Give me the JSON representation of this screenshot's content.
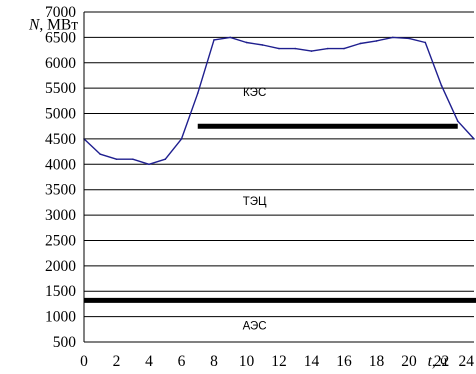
{
  "chart_data": {
    "type": "line",
    "title": "",
    "ylabel": {
      "var": "N",
      "unit": ", МВт"
    },
    "xlabel": {
      "var": "t",
      "unit": ", ч"
    },
    "ylim": [
      500,
      7000
    ],
    "xlim": [
      0,
      24
    ],
    "y_ticks": [
      500,
      1000,
      1500,
      2000,
      2500,
      3000,
      3500,
      4000,
      4500,
      5000,
      5500,
      6000,
      6500,
      7000
    ],
    "x_ticks": [
      0,
      2,
      4,
      6,
      8,
      10,
      12,
      14,
      16,
      18,
      20,
      22,
      24
    ],
    "grid": {
      "horizontal": true,
      "vertical": false
    },
    "series": [
      {
        "color": "#1f1f8f",
        "x": [
          0,
          1,
          2,
          3,
          4,
          5,
          6,
          7,
          8,
          9,
          10,
          11,
          12,
          13,
          14,
          15,
          16,
          17,
          18,
          19,
          20,
          21,
          22,
          23,
          24
        ],
        "y": [
          4500,
          4200,
          4100,
          4100,
          4000,
          4100,
          4500,
          5400,
          6450,
          6500,
          6400,
          6350,
          6280,
          6280,
          6230,
          6280,
          6280,
          6380,
          6430,
          6500,
          6480,
          6400,
          5550,
          4850,
          4500
        ]
      }
    ],
    "levels": [
      {
        "label": "АЭС",
        "value": 1320,
        "x_from": 0,
        "x_to": 24,
        "label_x": 10.5,
        "label_y": 750
      },
      {
        "label": "ТЭЦ",
        "value": 4750,
        "x_from": 7,
        "x_to": 23,
        "label_x": 10.5,
        "label_y": 3200
      },
      {
        "label": "КЭС",
        "value": null,
        "label_x": 10.5,
        "label_y": 5350
      }
    ]
  }
}
